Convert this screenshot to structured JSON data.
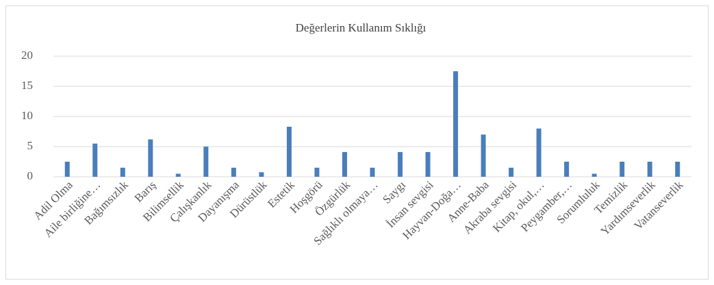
{
  "chart_data": {
    "type": "bar",
    "title": "Değerlerin Kullanım Sıklığı",
    "categories": [
      "Adil Olma",
      "Aile birliğine…",
      "Bağımsızlık",
      "Barış",
      "Bilimsellik",
      "Çalışkanlık",
      "Dayanışma",
      "Dürüstlük",
      "Estetik",
      "Hoşgörü",
      "Özgürlük",
      "Sağlıklı olmaya…",
      "Saygı",
      "İnsan sevgisi",
      "Hayvan-Doğa…",
      "Anne-Baba",
      "Akraba sevgisi",
      "Kitap, okul,…",
      "Peygamber,…",
      "Sorumluluk",
      "Temizlik",
      "Yardımseverlik",
      "Vatanseverlik"
    ],
    "values": [
      2.5,
      5.5,
      1.5,
      6.2,
      0.5,
      5,
      1.5,
      0.75,
      8.3,
      1.5,
      4.1,
      1.5,
      4.1,
      4.1,
      17.5,
      7,
      1.5,
      8,
      2.5,
      0.5,
      2.5,
      2.5,
      2.5
    ],
    "color": "#4a7ebb",
    "ylim": [
      0,
      20
    ],
    "yticks": [
      0,
      5,
      10,
      15,
      20
    ],
    "grid": true
  }
}
